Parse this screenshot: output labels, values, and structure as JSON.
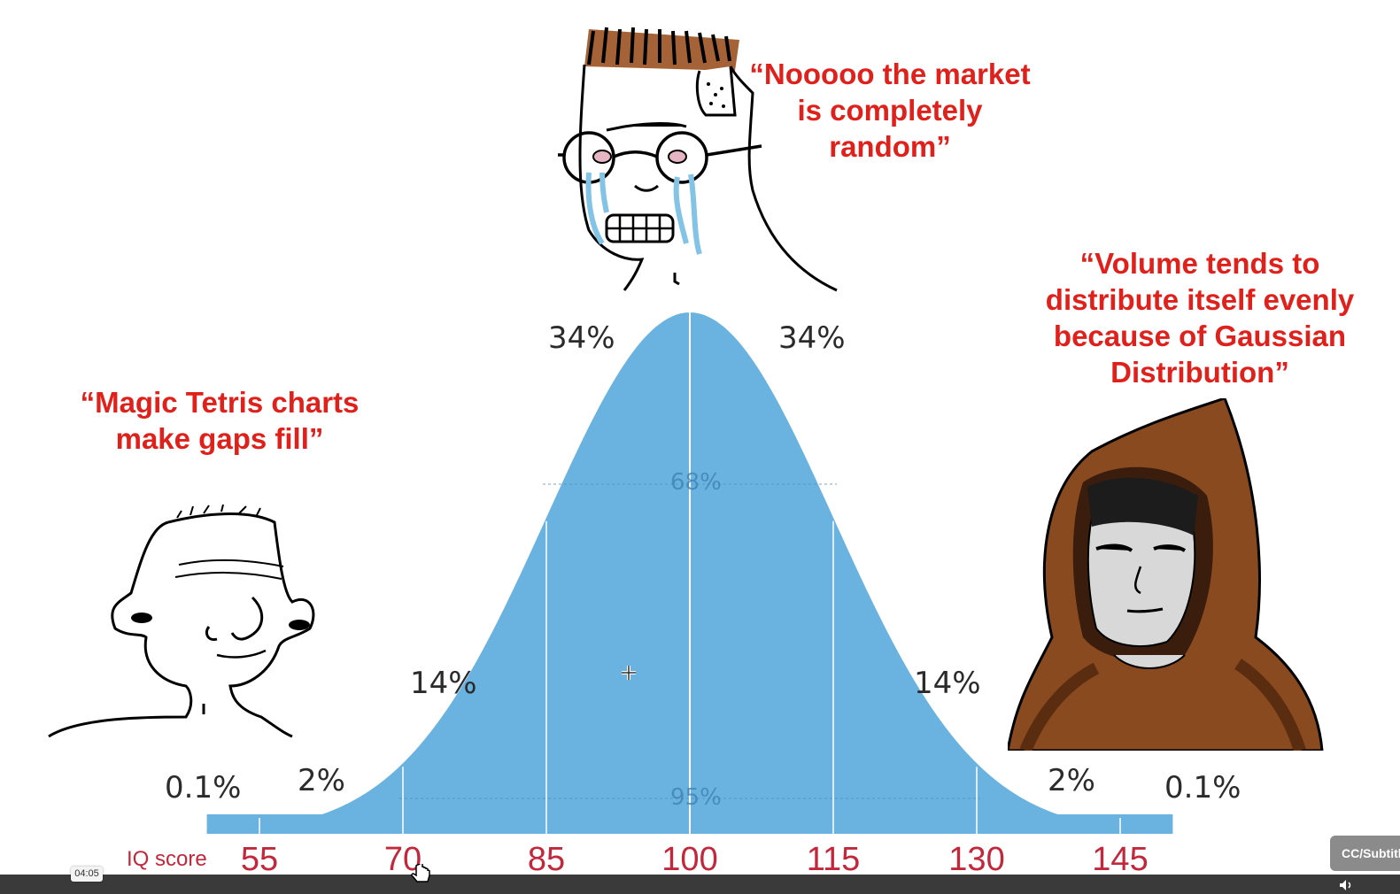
{
  "meme": {
    "quotes": {
      "left": "“Magic Tetris charts make gaps fill”",
      "middle": "“Nooooo the market is completely random”",
      "right": "“Volume tends to distribute itself evenly because of Gaussian Distribution”"
    },
    "colors": {
      "quote_text": "#e0201b",
      "curve_fill": "#6ab3e0",
      "iq_text": "#c2273b"
    },
    "characters": [
      "wojak-brainlet",
      "wojak-crying-glasses",
      "wojak-hooded-monk"
    ]
  },
  "chart_data": {
    "type": "area",
    "x_label": "IQ score",
    "ticks": [
      "55",
      "70",
      "85",
      "100",
      "115",
      "130",
      "145"
    ],
    "x": [
      55,
      70,
      85,
      100,
      115,
      130,
      145
    ],
    "band_percents": {
      "far_left": "0.1%",
      "left_tail": "2%",
      "left_mid": "14%",
      "left_center": "34%",
      "right_center": "34%",
      "right_mid": "14%",
      "right_tail": "2%",
      "far_right": "0.1%"
    },
    "inner_labels": {
      "one_sd": "68%",
      "two_sd": "95%"
    },
    "mean": 100,
    "sd": 15,
    "xlim": [
      40,
      160
    ]
  },
  "player": {
    "timestamp": "04:05",
    "cc_label": "CC/Subtitles",
    "volume_icon": "speaker-icon"
  }
}
